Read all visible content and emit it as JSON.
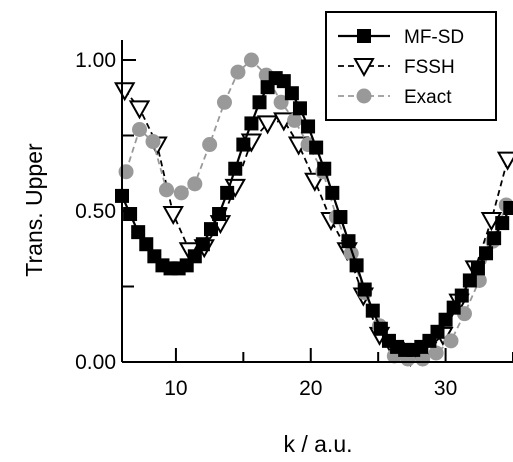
{
  "chart_data": {
    "type": "line",
    "title": "",
    "xlabel": "k / a.u.",
    "ylabel": "Trans. Upper",
    "xlim": [
      6,
      35
    ],
    "ylim": [
      0,
      1.0
    ],
    "xticks": [
      10,
      20,
      30
    ],
    "xtick_labels": [
      "10",
      "20",
      "30"
    ],
    "yticks": [
      0.0,
      0.5,
      1.0
    ],
    "ytick_labels": [
      "0.00",
      "0.50",
      "1.00"
    ],
    "grid": false,
    "legend_position": "top-right",
    "series": [
      {
        "name": "MF-SD",
        "marker": "square",
        "line_style": "solid",
        "color": "#000000",
        "x": [
          6.0,
          6.6,
          7.2,
          7.8,
          8.4,
          9.0,
          9.6,
          10.2,
          10.8,
          11.4,
          12.0,
          12.6,
          13.2,
          13.8,
          14.4,
          15.0,
          15.6,
          16.2,
          16.8,
          17.4,
          18.0,
          18.6,
          19.2,
          19.8,
          20.4,
          21.0,
          21.6,
          22.2,
          22.8,
          23.4,
          24.0,
          24.6,
          25.2,
          25.8,
          26.4,
          27.0,
          27.6,
          28.2,
          28.8,
          29.4,
          30.0,
          30.6,
          31.2,
          31.8,
          32.4,
          33.0,
          33.6,
          34.2,
          34.8
        ],
        "y": [
          0.55,
          0.49,
          0.43,
          0.39,
          0.35,
          0.32,
          0.31,
          0.31,
          0.32,
          0.35,
          0.39,
          0.44,
          0.49,
          0.56,
          0.64,
          0.72,
          0.79,
          0.86,
          0.91,
          0.94,
          0.93,
          0.89,
          0.84,
          0.78,
          0.71,
          0.64,
          0.56,
          0.48,
          0.4,
          0.32,
          0.24,
          0.17,
          0.11,
          0.07,
          0.05,
          0.04,
          0.04,
          0.05,
          0.07,
          0.1,
          0.14,
          0.18,
          0.22,
          0.27,
          0.31,
          0.36,
          0.41,
          0.46,
          0.51
        ]
      },
      {
        "name": "FSSH",
        "marker": "triangle-down",
        "line_style": "dashed",
        "color": "#000000",
        "x": [
          6.2,
          7.3,
          8.6,
          9.8,
          11.0,
          12.1,
          13.3,
          14.4,
          15.6,
          16.8,
          18.0,
          19.1,
          20.3,
          21.5,
          22.7,
          23.9,
          25.1,
          26.2,
          27.4,
          28.6,
          29.8,
          31.0,
          32.2,
          33.4,
          34.6
        ],
        "y": [
          0.9,
          0.84,
          0.72,
          0.49,
          0.37,
          0.38,
          0.46,
          0.58,
          0.73,
          0.79,
          0.8,
          0.72,
          0.6,
          0.47,
          0.37,
          0.22,
          0.09,
          0.04,
          0.02,
          0.04,
          0.09,
          0.2,
          0.31,
          0.47,
          0.67
        ]
      },
      {
        "name": "Exact",
        "marker": "circle",
        "line_style": "dashed",
        "color": "#999999",
        "x": [
          6.3,
          7.3,
          8.3,
          9.3,
          10.4,
          11.4,
          12.5,
          13.6,
          14.6,
          15.6,
          16.7,
          17.8,
          18.8,
          19.8,
          20.9,
          21.9,
          23.0,
          24.0,
          25.1,
          26.2,
          27.2,
          28.3,
          29.3,
          30.4,
          31.4,
          32.5,
          33.5,
          34.5
        ],
        "y": [
          0.63,
          0.77,
          0.73,
          0.57,
          0.56,
          0.59,
          0.72,
          0.86,
          0.96,
          1.0,
          0.95,
          0.86,
          0.8,
          0.72,
          0.63,
          0.48,
          0.36,
          0.23,
          0.12,
          0.02,
          0.01,
          0.01,
          0.03,
          0.07,
          0.16,
          0.27,
          0.4,
          0.52
        ]
      }
    ]
  }
}
